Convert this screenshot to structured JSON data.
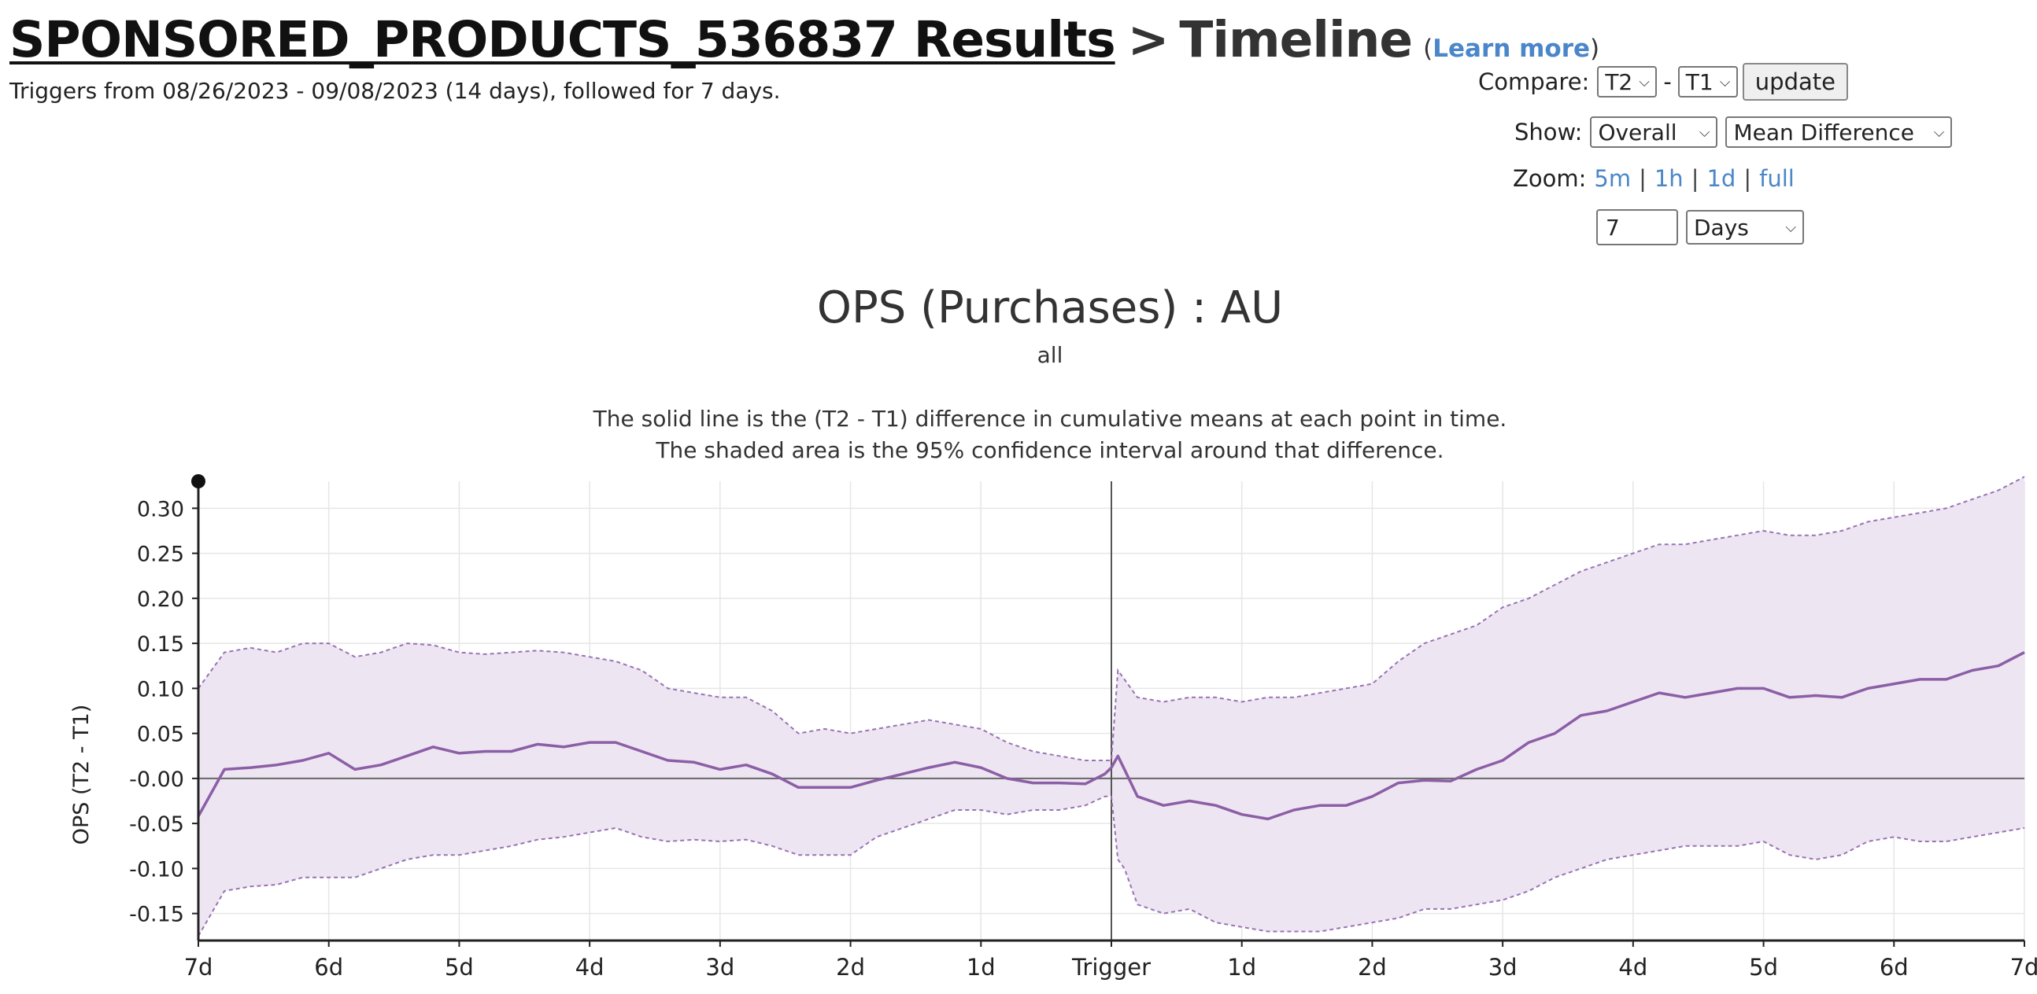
{
  "header": {
    "title_link": "SPONSORED_PRODUCTS_536837 Results",
    "title_sep": ">",
    "title_page": "Timeline",
    "learn_open": "(",
    "learn_more": "Learn more",
    "learn_close": ")",
    "subtitle": "Triggers from 08/26/2023 - 09/08/2023 (14 days), followed for 7 days."
  },
  "controls": {
    "compare_label": "Compare:",
    "compare_a": "T2",
    "compare_dash": "-",
    "compare_b": "T1",
    "update_label": "update",
    "show_label": "Show:",
    "show_scope": "Overall",
    "show_metric": "Mean Difference",
    "zoom_label": "Zoom:",
    "zoom_options": [
      "5m",
      "1h",
      "1d",
      "full"
    ],
    "zoom_sep": "|",
    "duration_value": "7",
    "duration_unit": "Days"
  },
  "chart_data": {
    "type": "line",
    "title": "OPS (Purchases) : AU",
    "subtitle": "all",
    "description": [
      "The solid line is the (T2 - T1) difference in cumulative means at each point in time.",
      "The shaded area is the 95% confidence interval around that difference."
    ],
    "ylabel": "OPS (T2 - T1)",
    "ylim": [
      -0.18,
      0.33
    ],
    "y_ticks": [
      0.3,
      0.25,
      0.2,
      0.15,
      0.1,
      0.05,
      0.0,
      -0.05,
      -0.1,
      -0.15
    ],
    "y_tick_labels": [
      "0.30",
      "0.25",
      "0.20",
      "0.15",
      "0.10",
      "0.05",
      "-0.00",
      "-0.05",
      "-0.10",
      "-0.15"
    ],
    "xlim": [
      -7,
      7
    ],
    "x_ticks": [
      -7,
      -6,
      -5,
      -4,
      -3,
      -2,
      -1,
      0,
      1,
      2,
      3,
      4,
      5,
      6,
      7
    ],
    "x_tick_labels": [
      "7d",
      "6d",
      "5d",
      "4d",
      "3d",
      "2d",
      "1d",
      "Trigger",
      "1d",
      "2d",
      "3d",
      "4d",
      "5d",
      "6d",
      "7d"
    ],
    "grid": true,
    "colors": {
      "line": "#8c5ea6",
      "band": "#ede6f2",
      "bound": "#9a72b4",
      "axis": "#222222",
      "grid": "#e6e6e6"
    },
    "series": [
      {
        "x": [
          -7,
          -6.8,
          -6.6,
          -6.4,
          -6.2,
          -6.0,
          -5.8,
          -5.6,
          -5.4,
          -5.2,
          -5.0,
          -4.8,
          -4.6,
          -4.4,
          -4.2,
          -4.0,
          -3.8,
          -3.6,
          -3.4,
          -3.2,
          -3.0,
          -2.8,
          -2.6,
          -2.4,
          -2.2,
          -2.0,
          -1.8,
          -1.6,
          -1.4,
          -1.2,
          -1.0,
          -0.8,
          -0.6,
          -0.4,
          -0.2,
          -0.05,
          0,
          0.05,
          0.1,
          0.2,
          0.4,
          0.6,
          0.8,
          1.0,
          1.2,
          1.4,
          1.6,
          1.8,
          2.0,
          2.2,
          2.4,
          2.6,
          2.8,
          3.0,
          3.2,
          3.4,
          3.6,
          3.8,
          4.0,
          4.2,
          4.4,
          4.6,
          4.8,
          5.0,
          5.2,
          5.4,
          5.6,
          5.8,
          6.0,
          6.2,
          6.4,
          6.6,
          6.8,
          7.0
        ],
        "mean": [
          -0.042,
          0.01,
          0.012,
          0.015,
          0.02,
          0.028,
          0.01,
          0.015,
          0.025,
          0.035,
          0.028,
          0.03,
          0.03,
          0.038,
          0.035,
          0.04,
          0.04,
          0.03,
          0.02,
          0.018,
          0.01,
          0.015,
          0.005,
          -0.01,
          -0.01,
          -0.01,
          -0.002,
          0.005,
          0.012,
          0.018,
          0.012,
          0.0,
          -0.005,
          -0.005,
          -0.006,
          0.005,
          0.012,
          0.025,
          0.01,
          -0.02,
          -0.03,
          -0.025,
          -0.03,
          -0.04,
          -0.045,
          -0.035,
          -0.03,
          -0.03,
          -0.02,
          -0.005,
          -0.002,
          -0.003,
          0.01,
          0.02,
          0.04,
          0.05,
          0.07,
          0.075,
          0.085,
          0.095,
          0.09,
          0.095,
          0.1,
          0.1,
          0.09,
          0.092,
          0.09,
          0.1,
          0.105,
          0.11,
          0.11,
          0.12,
          0.125,
          0.14
        ],
        "upper": [
          0.1,
          0.14,
          0.145,
          0.14,
          0.15,
          0.15,
          0.135,
          0.14,
          0.15,
          0.148,
          0.14,
          0.138,
          0.14,
          0.142,
          0.14,
          0.135,
          0.13,
          0.12,
          0.1,
          0.095,
          0.09,
          0.09,
          0.075,
          0.05,
          0.055,
          0.05,
          0.055,
          0.06,
          0.065,
          0.06,
          0.055,
          0.04,
          0.03,
          0.025,
          0.02,
          0.02,
          0.02,
          0.12,
          0.11,
          0.09,
          0.085,
          0.09,
          0.09,
          0.085,
          0.09,
          0.09,
          0.095,
          0.1,
          0.105,
          0.13,
          0.15,
          0.16,
          0.17,
          0.19,
          0.2,
          0.215,
          0.23,
          0.24,
          0.25,
          0.26,
          0.26,
          0.265,
          0.27,
          0.275,
          0.27,
          0.27,
          0.275,
          0.285,
          0.29,
          0.295,
          0.3,
          0.31,
          0.32,
          0.335
        ],
        "lower": [
          -0.175,
          -0.125,
          -0.12,
          -0.118,
          -0.11,
          -0.11,
          -0.11,
          -0.1,
          -0.09,
          -0.085,
          -0.085,
          -0.08,
          -0.075,
          -0.068,
          -0.065,
          -0.06,
          -0.055,
          -0.065,
          -0.07,
          -0.068,
          -0.07,
          -0.068,
          -0.075,
          -0.085,
          -0.085,
          -0.085,
          -0.065,
          -0.055,
          -0.045,
          -0.035,
          -0.035,
          -0.04,
          -0.035,
          -0.035,
          -0.03,
          -0.02,
          -0.02,
          -0.09,
          -0.1,
          -0.14,
          -0.15,
          -0.145,
          -0.16,
          -0.165,
          -0.17,
          -0.17,
          -0.17,
          -0.165,
          -0.16,
          -0.155,
          -0.145,
          -0.145,
          -0.14,
          -0.135,
          -0.125,
          -0.11,
          -0.1,
          -0.09,
          -0.085,
          -0.08,
          -0.075,
          -0.075,
          -0.075,
          -0.07,
          -0.085,
          -0.09,
          -0.085,
          -0.07,
          -0.065,
          -0.07,
          -0.07,
          -0.065,
          -0.06,
          -0.055
        ]
      }
    ]
  }
}
